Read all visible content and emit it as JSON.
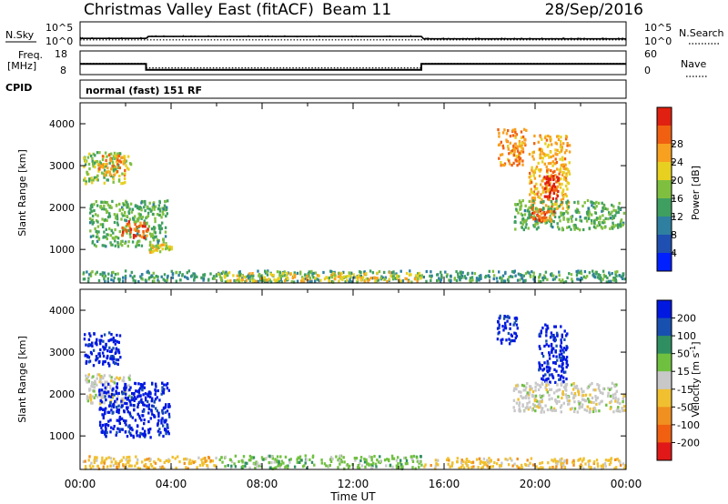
{
  "header": {
    "station": "Christmas Valley East (fitACF)",
    "beam": "Beam 11",
    "date": "28/Sep/2016"
  },
  "top_panels": {
    "nsky_label": "N.Sky",
    "nsearch_label": "N.Search",
    "nsky_ticks": [
      "10^5",
      "10^0"
    ],
    "nsearch_ticks": [
      "10^5",
      "10^0"
    ],
    "freq_label_1": "Freq.",
    "freq_label_2": "[MHz]",
    "freq_ticks": [
      "18",
      "8"
    ],
    "nave_label": "Nave",
    "nave_ticks": [
      "60",
      "0"
    ],
    "cpid_label": "CPID",
    "cpid_value": "normal (fast) 151 RF"
  },
  "chart_data": [
    {
      "type": "line",
      "panel": "noise",
      "series": [
        {
          "name": "N.Sky",
          "x": [
            0,
            2.9,
            3.0,
            15.0,
            15.1,
            24
          ],
          "y": [
            1.5,
            1.5,
            1.9,
            1.9,
            1.4,
            1.4
          ],
          "style": "solid"
        },
        {
          "name": "N.Search",
          "x": [
            0,
            24
          ],
          "y": [
            1.2,
            1.2
          ],
          "style": "dotted"
        }
      ],
      "xlim": [
        0,
        24
      ],
      "ylim_log10": [
        0,
        5
      ]
    },
    {
      "type": "line",
      "panel": "frequency",
      "series": [
        {
          "name": "Freq.",
          "x": [
            0,
            2.9,
            2.9,
            15.0,
            15.0,
            24
          ],
          "y": [
            12.5,
            12.5,
            10.0,
            10.0,
            12.5,
            12.5
          ],
          "style": "solid"
        },
        {
          "name": "Nave",
          "x": [
            0,
            2.9,
            2.9,
            15.0,
            15.0,
            24
          ],
          "y": [
            28,
            28,
            17,
            17,
            28,
            28
          ],
          "style": "dotted"
        }
      ],
      "xlim": [
        0,
        24
      ],
      "freq_ylim": [
        8,
        18
      ],
      "nave_ylim": [
        0,
        60
      ]
    },
    {
      "type": "heatmap",
      "panel": "power",
      "ylabel": "Slant Range [km]",
      "ylim": [
        200,
        4500
      ],
      "yticks": [
        1000,
        2000,
        3000,
        4000
      ],
      "xlim": [
        0,
        24
      ],
      "colorbar_label": "Power [dB]",
      "colorbar_ticks": [
        4,
        8,
        12,
        16,
        20,
        24,
        28
      ],
      "colors": [
        "#0020ff",
        "#1f4fb0",
        "#2f7fa0",
        "#3f9f60",
        "#7fbf40",
        "#e8d020",
        "#f8a020",
        "#f06010",
        "#e02010"
      ],
      "regions": [
        {
          "t0": 0.1,
          "t1": 2.2,
          "r0": 2600,
          "r1": 3350,
          "v": 14
        },
        {
          "t0": 0.8,
          "t1": 2.0,
          "r0": 2800,
          "r1": 3300,
          "v": 22
        },
        {
          "t0": 0.4,
          "t1": 3.8,
          "r0": 1100,
          "r1": 2200,
          "v": 12
        },
        {
          "t0": 1.8,
          "t1": 3.0,
          "r0": 1300,
          "r1": 1700,
          "v": 24
        },
        {
          "t0": 3.0,
          "t1": 4.0,
          "r0": 950,
          "r1": 1150,
          "v": 18
        },
        {
          "t0": 0.1,
          "t1": 24,
          "r0": 250,
          "r1": 520,
          "v": 10
        },
        {
          "t0": 6.0,
          "t1": 15.0,
          "r0": 260,
          "r1": 480,
          "v": 18
        },
        {
          "t0": 18.3,
          "t1": 19.6,
          "r0": 3000,
          "r1": 3900,
          "v": 22
        },
        {
          "t0": 19.7,
          "t1": 21.5,
          "r0": 2000,
          "r1": 3750,
          "v": 20
        },
        {
          "t0": 20.3,
          "t1": 21.0,
          "r0": 2200,
          "r1": 2800,
          "v": 28
        },
        {
          "t0": 19.0,
          "t1": 23.9,
          "r0": 1500,
          "r1": 2200,
          "v": 12
        },
        {
          "t0": 19.8,
          "t1": 20.8,
          "r0": 1700,
          "r1": 2000,
          "v": 24
        }
      ]
    },
    {
      "type": "heatmap",
      "panel": "velocity",
      "ylabel": "Slant Range [km]",
      "xlabel": "Time UT",
      "ylim": [
        200,
        4500
      ],
      "yticks": [
        1000,
        2000,
        3000,
        4000
      ],
      "xlim": [
        0,
        24
      ],
      "xticks": [
        "00:00",
        "04:00",
        "08:00",
        "12:00",
        "16:00",
        "20:00",
        "00:00"
      ],
      "colorbar_label": "Velocity [m s-1]",
      "colorbar_ticks": [
        200,
        100,
        50,
        15,
        -15,
        -50,
        -100,
        -200
      ],
      "colors": [
        "#0018e0",
        "#1850b0",
        "#2f8f60",
        "#70c040",
        "#c8c8c8",
        "#f0c030",
        "#f09020",
        "#f06010",
        "#e01818"
      ],
      "regions": [
        {
          "t0": 0.1,
          "t1": 1.8,
          "r0": 2700,
          "r1": 3500,
          "v": 200
        },
        {
          "t0": 0.2,
          "t1": 2.2,
          "r0": 1800,
          "r1": 2500,
          "v": 0
        },
        {
          "t0": 0.8,
          "t1": 3.9,
          "r0": 1000,
          "r1": 2300,
          "v": 200
        },
        {
          "t0": 0.1,
          "t1": 6.0,
          "r0": 250,
          "r1": 550,
          "v": -40
        },
        {
          "t0": 6.0,
          "t1": 15.0,
          "r0": 250,
          "r1": 560,
          "v": 40
        },
        {
          "t0": 15.0,
          "t1": 24,
          "r0": 250,
          "r1": 500,
          "v": -40
        },
        {
          "t0": 18.3,
          "t1": 19.2,
          "r0": 3200,
          "r1": 3900,
          "v": 200
        },
        {
          "t0": 20.1,
          "t1": 21.4,
          "r0": 2300,
          "r1": 3700,
          "v": 200
        },
        {
          "t0": 19.0,
          "t1": 23.9,
          "r0": 1600,
          "r1": 2300,
          "v": 0
        }
      ]
    }
  ]
}
